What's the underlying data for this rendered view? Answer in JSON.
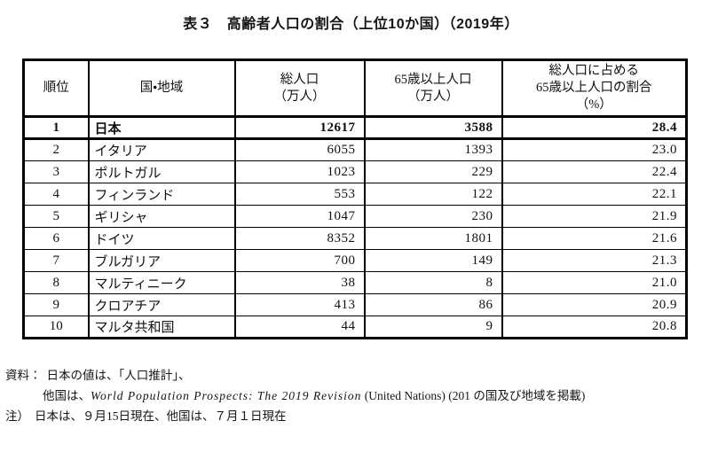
{
  "page": {
    "title": "表３　高齢者人口の割合（上位10か国）（2019年）"
  },
  "table": {
    "columns": {
      "rank": "順位",
      "country": "国・地域",
      "total_population": "総人口\n（万人）",
      "elderly_population": "65歳以上人口\n（万人）",
      "elderly_ratio": "総人口に占める\n65歳以上人口の割合\n（%）"
    },
    "rows": [
      {
        "rank": "1",
        "country": "日本",
        "total_population": "12617",
        "elderly_population": "3588",
        "elderly_ratio": "28.4"
      },
      {
        "rank": "2",
        "country": "イタリア",
        "total_population": "6055",
        "elderly_population": "1393",
        "elderly_ratio": "23.0"
      },
      {
        "rank": "3",
        "country": "ポルトガル",
        "total_population": "1023",
        "elderly_population": "229",
        "elderly_ratio": "22.4"
      },
      {
        "rank": "4",
        "country": "フィンランド",
        "total_population": "553",
        "elderly_population": "122",
        "elderly_ratio": "22.1"
      },
      {
        "rank": "5",
        "country": "ギリシャ",
        "total_population": "1047",
        "elderly_population": "230",
        "elderly_ratio": "21.9"
      },
      {
        "rank": "6",
        "country": "ドイツ",
        "total_population": "8352",
        "elderly_population": "1801",
        "elderly_ratio": "21.6"
      },
      {
        "rank": "7",
        "country": "ブルガリア",
        "total_population": "700",
        "elderly_population": "149",
        "elderly_ratio": "21.3"
      },
      {
        "rank": "8",
        "country": "マルティニーク",
        "total_population": "38",
        "elderly_population": "8",
        "elderly_ratio": "21.0"
      },
      {
        "rank": "9",
        "country": "クロアチア",
        "total_population": "413",
        "elderly_population": "86",
        "elderly_ratio": "20.9"
      },
      {
        "rank": "10",
        "country": "マルタ共和国",
        "total_population": "44",
        "elderly_population": "9",
        "elderly_ratio": "20.8"
      }
    ],
    "highlighted_country": "日本"
  },
  "notes": {
    "source_label": "資料：",
    "source_line1": "日本の値は、「人口推計」、",
    "source_line2_prefix": "他国は、",
    "source_line2_title": "World Population Prospects: The 2019 Revision",
    "source_line2_suffix": " (United Nations) (201 の国及び地域を掲載)",
    "date_label": "注）",
    "date_text": "日本は、９月15日現在、他国は、７月１日現在"
  }
}
